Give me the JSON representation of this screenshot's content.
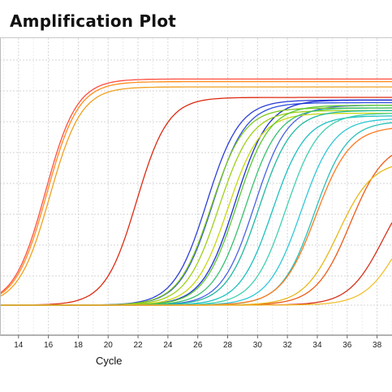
{
  "title": "Amplification Plot",
  "chart_data": {
    "type": "line",
    "title": "Amplification Plot",
    "xlabel": "Cycle",
    "ylabel": "",
    "xlim": [
      12,
      39
    ],
    "ylim": [
      0,
      1.0
    ],
    "x_ticks": [
      14,
      16,
      18,
      20,
      22,
      24,
      26,
      28,
      30,
      32,
      34,
      36,
      38
    ],
    "grid": true,
    "series": [
      {
        "color": "#ff8c1a",
        "values": {
          "mid": 15.9,
          "slope": 1.05,
          "max": 0.85
        }
      },
      {
        "color": "#f0a020",
        "values": {
          "mid": 16.1,
          "slope": 1.05,
          "max": 0.83
        }
      },
      {
        "color": "#ff4d40",
        "values": {
          "mid": 15.8,
          "slope": 1.05,
          "max": 0.86
        }
      },
      {
        "color": "#dd2a10",
        "values": {
          "mid": 21.9,
          "slope": 1.05,
          "max": 0.79
        }
      },
      {
        "color": "#2c3ed8",
        "values": {
          "mid": 26.6,
          "slope": 1.1,
          "max": 0.78
        }
      },
      {
        "color": "#3050e0",
        "values": {
          "mid": 27.0,
          "slope": 1.1,
          "max": 0.77
        }
      },
      {
        "color": "#1d2fd0",
        "values": {
          "mid": 28.5,
          "slope": 1.1,
          "max": 0.78
        }
      },
      {
        "color": "#4a62e6",
        "values": {
          "mid": 29.8,
          "slope": 1.1,
          "max": 0.76
        }
      },
      {
        "color": "#7ec820",
        "values": {
          "mid": 26.9,
          "slope": 1.1,
          "max": 0.75
        }
      },
      {
        "color": "#a0d018",
        "values": {
          "mid": 27.4,
          "slope": 1.1,
          "max": 0.74
        }
      },
      {
        "color": "#c8d810",
        "values": {
          "mid": 28.0,
          "slope": 1.1,
          "max": 0.73
        }
      },
      {
        "color": "#5cc832",
        "values": {
          "mid": 28.6,
          "slope": 1.1,
          "max": 0.76
        }
      },
      {
        "color": "#38c070",
        "values": {
          "mid": 29.2,
          "slope": 1.1,
          "max": 0.75
        }
      },
      {
        "color": "#20b8a0",
        "values": {
          "mid": 30.1,
          "slope": 1.1,
          "max": 0.74
        }
      },
      {
        "color": "#1cc0c0",
        "values": {
          "mid": 31.0,
          "slope": 1.1,
          "max": 0.72
        }
      },
      {
        "color": "#40d0b0",
        "values": {
          "mid": 31.9,
          "slope": 1.1,
          "max": 0.73
        }
      },
      {
        "color": "#30c8d8",
        "values": {
          "mid": 32.9,
          "slope": 1.1,
          "max": 0.71
        }
      },
      {
        "color": "#2ac0b8",
        "values": {
          "mid": 33.8,
          "slope": 1.1,
          "max": 0.7
        }
      },
      {
        "color": "#ff7a20",
        "values": {
          "mid": 33.9,
          "slope": 1.15,
          "max": 0.68
        }
      },
      {
        "color": "#ee5a18",
        "values": {
          "mid": 36.2,
          "slope": 1.15,
          "max": 0.62
        }
      },
      {
        "color": "#e8b818",
        "values": {
          "mid": 35.4,
          "slope": 1.15,
          "max": 0.55
        }
      },
      {
        "color": "#d83018",
        "values": {
          "mid": 38.4,
          "slope": 1.15,
          "max": 0.5
        }
      },
      {
        "color": "#f0c030",
        "values": {
          "mid": 39.5,
          "slope": 1.15,
          "max": 0.45
        }
      }
    ]
  }
}
